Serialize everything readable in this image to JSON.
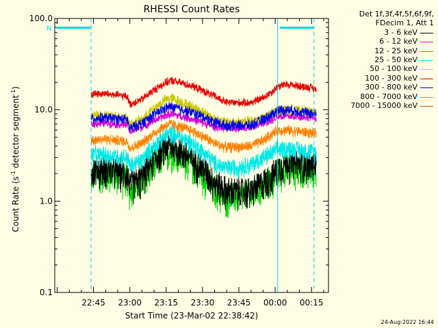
{
  "chart_data": {
    "type": "line",
    "title": "RHESSI Count Rates",
    "xlabel": "Start Time (23-Mar-02 22:38:42)",
    "ylabel_main": "Count Rate (s",
    "ylabel_sup": "-1",
    "ylabel_mid": " detector segment",
    "ylabel_sup2": "-1",
    "ylabel_end": ")",
    "y_scale": "log",
    "ylim": [
      0.1,
      100.0
    ],
    "xlim_minutes": [
      -16,
      97
    ],
    "x_ticks": [
      {
        "m": 0,
        "label": "22:45"
      },
      {
        "m": 15,
        "label": "23:00"
      },
      {
        "m": 30,
        "label": "23:15"
      },
      {
        "m": 45,
        "label": "23:30"
      },
      {
        "m": 60,
        "label": "23:45"
      },
      {
        "m": 75,
        "label": "00:00"
      },
      {
        "m": 90,
        "label": "00:15"
      }
    ],
    "y_ticks": [
      {
        "v": 100,
        "label": "100.0"
      },
      {
        "v": 10,
        "label": "10.0"
      },
      {
        "v": 1,
        "label": "1.0"
      },
      {
        "v": 0.1,
        "label": "0.1"
      }
    ],
    "grid": false,
    "legend_position": "right",
    "legend_header": [
      "Det 1f,3f,4f,5f,6f,9f,",
      "FDecim 1, Att 1"
    ],
    "series": [
      {
        "name": "3 - 6 keV",
        "color": "#000000"
      },
      {
        "name": "6 - 12 keV",
        "color": "#d800d8"
      },
      {
        "name": "12 - 25 keV",
        "color": "#00d800"
      },
      {
        "name": "25 - 50 keV",
        "color": "#00e8e8"
      },
      {
        "name": "50 - 100 keV",
        "color": "#c8c800"
      },
      {
        "name": "100 - 300 keV",
        "color": "#e80000"
      },
      {
        "name": "300 - 800 keV",
        "color": "#0000e8"
      },
      {
        "name": "800 - 7000 keV",
        "color": "#ff8000"
      },
      {
        "name": "7000 - 15000 keV",
        "color": "#a06000"
      }
    ],
    "series_profiles": {
      "x_minutes": [
        -1,
        5,
        14,
        15,
        20,
        30,
        32,
        40,
        50,
        55,
        65,
        70,
        74,
        76,
        80,
        90,
        92
      ],
      "3 - 6 keV": [
        2.2,
        2.3,
        2.0,
        1.5,
        1.8,
        4.0,
        4.2,
        3.0,
        1.6,
        1.3,
        1.3,
        1.6,
        1.9,
        2.3,
        2.7,
        2.5,
        2.5
      ],
      "6 - 12 keV": [
        7.0,
        7.2,
        6.8,
        5.7,
        6.5,
        8.7,
        9.0,
        8.0,
        6.5,
        6.3,
        6.5,
        7.2,
        7.8,
        8.5,
        8.5,
        8.3,
        8.2
      ],
      "12 - 25 keV": [
        1.9,
        2.0,
        1.8,
        1.3,
        1.6,
        3.3,
        3.5,
        2.6,
        1.3,
        1.1,
        1.2,
        1.5,
        1.8,
        2.1,
        2.3,
        2.2,
        2.1
      ],
      "25 - 50 keV": [
        3.2,
        3.2,
        3.0,
        2.4,
        2.8,
        5.3,
        5.6,
        4.4,
        2.6,
        2.3,
        2.5,
        3.0,
        3.4,
        3.7,
        3.8,
        3.5,
        3.4
      ],
      "50 - 100 keV": [
        8.5,
        8.7,
        8.2,
        6.8,
        7.8,
        13.0,
        13.5,
        11.0,
        8.0,
        7.3,
        7.5,
        8.3,
        9.2,
        10.0,
        10.0,
        9.5,
        9.3
      ],
      "100 - 300 keV": [
        15.0,
        15.0,
        14.0,
        11.5,
        13.0,
        20.0,
        21.0,
        18.5,
        14.0,
        12.0,
        12.0,
        13.5,
        16.0,
        18.0,
        19.0,
        17.5,
        16.5
      ],
      "300 - 800 keV": [
        8.0,
        8.2,
        7.8,
        6.2,
        7.2,
        10.5,
        10.8,
        9.5,
        7.4,
        6.7,
        6.8,
        7.8,
        9.0,
        10.0,
        10.0,
        9.2,
        8.8
      ],
      "800 - 7000 keV": [
        4.7,
        4.8,
        4.5,
        3.8,
        4.3,
        6.8,
        7.0,
        6.0,
        4.3,
        3.9,
        4.0,
        4.6,
        5.5,
        6.0,
        6.0,
        5.6,
        5.4
      ],
      "7000 - 15000 keV": [
        null,
        null,
        null,
        null,
        null,
        null,
        null,
        null,
        null,
        null,
        null,
        null,
        null,
        null,
        null,
        null,
        null
      ]
    },
    "noise_fraction": {
      "3 - 6 keV": 0.24,
      "6 - 12 keV": 0.06,
      "12 - 25 keV": 0.24,
      "25 - 50 keV": 0.14,
      "50 - 100 keV": 0.08,
      "100 - 300 keV": 0.06,
      "300 - 800 keV": 0.08,
      "800 - 7000 keV": 0.08,
      "7000 - 15000 keV": 0
    },
    "annotation_flag": {
      "label": "N",
      "segments_minutes": [
        [
          -16,
          -1
        ],
        [
          76,
          91
        ]
      ],
      "value": 79.0,
      "color": "#00d8e8"
    },
    "vertical_markers_minutes": [
      {
        "m": -1,
        "style": "dashed",
        "color": "#00d8e8"
      },
      {
        "m": 76,
        "style": "solid",
        "color": "#00d8e8"
      },
      {
        "m": 91,
        "style": "dashed",
        "color": "#00d8e8"
      }
    ]
  },
  "timestamp": "24-Aug-2022 16:44"
}
